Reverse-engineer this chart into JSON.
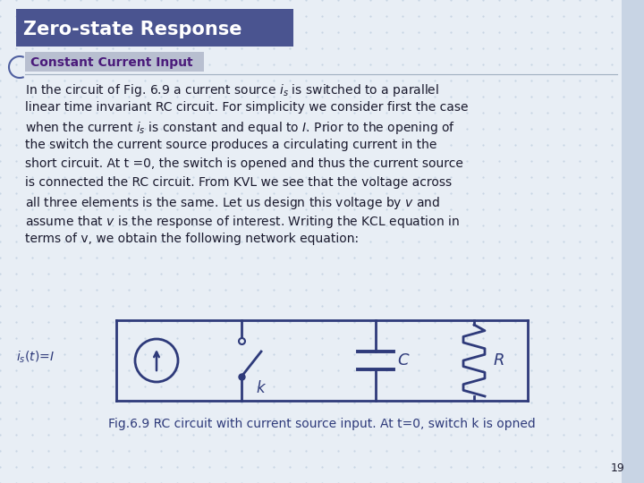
{
  "bg_color": "#dce6f1",
  "slide_bg": "#e8eef5",
  "title_text": "Zero-state Response",
  "title_bg": "#4a5490",
  "title_color": "#ffffff",
  "subtitle_text": "Constant Current Input",
  "subtitle_bg": "#b8bfd0",
  "subtitle_color": "#4a1a7a",
  "body_text_color": "#1a1a2e",
  "circuit_color": "#2e3a7a",
  "caption_text": "Fig.6.9 RC circuit with current source input. At t=0, switch k is opned",
  "page_number": "19",
  "grid_color": "#c0cfe0",
  "body_lines": [
    "In the circuit of Fig. 6.9 a current source $i_s$ is switched to a parallel",
    "linear time invariant RC circuit. For simplicity we consider first the case",
    "when the current $i_s$ is constant and equal to $I$. Prior to the opening of",
    "the switch the current source produces a circulating current in the",
    "short circuit. At t =0, the switch is opened and thus the current source",
    "is connected the RC circuit. From KVL we see that the voltage across",
    "all three elements is the same. Let us design this voltage by $v$ and",
    "assume that $v$ is the response of interest. Writing the KCL equation in",
    "terms of v, we obtain the following network equation:"
  ]
}
